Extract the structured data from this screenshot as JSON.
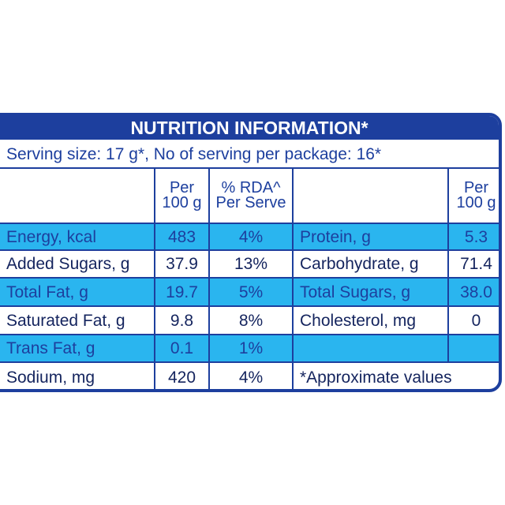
{
  "header": {
    "title": "NUTRITION INFORMATION*"
  },
  "serving": "Serving size: 17 g*, No of serving per package: 16*",
  "table": {
    "left_header": [
      "Per\n100 g",
      "% RDA^\nPer Serve"
    ],
    "right_header": "Per\n100 g",
    "left_rows": [
      [
        "Energy, kcal",
        "483",
        "4%"
      ],
      [
        "Added Sugars, g",
        "37.9",
        "13%"
      ],
      [
        "Total Fat, g",
        "19.7",
        "5%"
      ],
      [
        "Saturated Fat, g",
        "9.8",
        "8%"
      ],
      [
        "Trans Fat, g",
        "0.1",
        "1%"
      ],
      [
        "Sodium, mg",
        "420",
        "4%"
      ]
    ],
    "right_rows": [
      [
        "Protein, g",
        "5.3"
      ],
      [
        "Carbohydrate, g",
        "71.4"
      ],
      [
        "Total Sugars, g",
        "38.0"
      ],
      [
        "Cholesterol, mg",
        "0"
      ]
    ],
    "note": "*Approximate values"
  }
}
